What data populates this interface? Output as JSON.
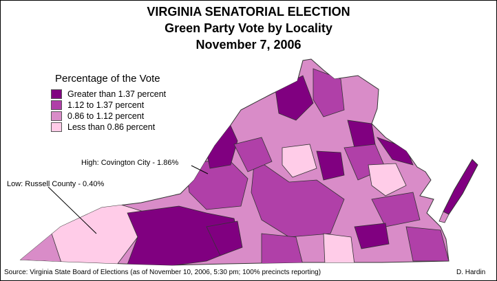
{
  "title": {
    "line1": "VIRGINIA SENATORIAL ELECTION",
    "line2": "Green Party Vote by Locality",
    "line3": "November 7, 2006"
  },
  "legend": {
    "title": "Percentage of the Vote",
    "items": [
      {
        "label": "Greater than 1.37 percent",
        "color": "#800080"
      },
      {
        "label": "1.12 to 1.37 percent",
        "color": "#b040a8"
      },
      {
        "label": "0.86 to 1.12 percent",
        "color": "#d98cc8"
      },
      {
        "label": "Less than 0.86 percent",
        "color": "#ffcce8"
      }
    ]
  },
  "callouts": {
    "high": "High: Covington City - 1.86%",
    "low": "Low: Russell County - 0.40%"
  },
  "footer": {
    "source": "Source: Virginia State Board of Elections (as of November 10, 2006, 5:30 pm; 100% precincts reporting)",
    "author": "D. Hardin"
  },
  "colors": {
    "border": "#333333",
    "background": "#ffffff"
  }
}
